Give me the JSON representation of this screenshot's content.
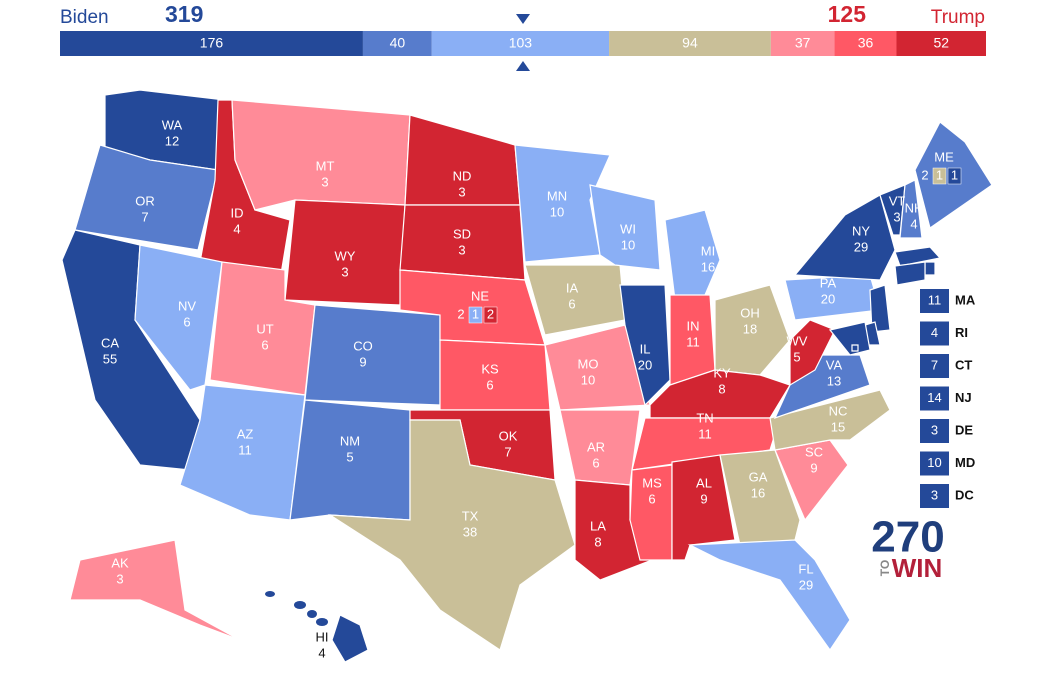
{
  "header": {
    "left_label": "Biden",
    "left_total": 319,
    "right_total": 125,
    "right_label": "Trump"
  },
  "bar": {
    "segments": [
      {
        "value": 176,
        "color": "#244999"
      },
      {
        "value": 40,
        "color": "#577ccc"
      },
      {
        "value": 103,
        "color": "#8aaff5"
      },
      {
        "value": 94,
        "color": "#c9bf98"
      },
      {
        "value": 37,
        "color": "#ff8b98"
      },
      {
        "value": 36,
        "color": "#ff5865"
      },
      {
        "value": 52,
        "color": "#d22532"
      }
    ]
  },
  "states": [
    {
      "abbr": "WA",
      "ev": 12,
      "color": "#244999"
    },
    {
      "abbr": "OR",
      "ev": 7,
      "color": "#577ccc"
    },
    {
      "abbr": "CA",
      "ev": 55,
      "color": "#244999"
    },
    {
      "abbr": "ID",
      "ev": 4,
      "color": "#d22532"
    },
    {
      "abbr": "NV",
      "ev": 6,
      "color": "#8aaff5"
    },
    {
      "abbr": "MT",
      "ev": 3,
      "color": "#ff8b98"
    },
    {
      "abbr": "WY",
      "ev": 3,
      "color": "#d22532"
    },
    {
      "abbr": "UT",
      "ev": 6,
      "color": "#ff8b98"
    },
    {
      "abbr": "AZ",
      "ev": 11,
      "color": "#8aaff5"
    },
    {
      "abbr": "CO",
      "ev": 9,
      "color": "#577ccc"
    },
    {
      "abbr": "NM",
      "ev": 5,
      "color": "#577ccc"
    },
    {
      "abbr": "ND",
      "ev": 3,
      "color": "#d22532"
    },
    {
      "abbr": "SD",
      "ev": 3,
      "color": "#d22532"
    },
    {
      "abbr": "NE",
      "ev": 2,
      "color": "#ff5865",
      "districts": [
        {
          "ev": 1,
          "color": "#8aaff5"
        },
        {
          "ev": 2,
          "color": "#d22532"
        }
      ]
    },
    {
      "abbr": "KS",
      "ev": 6,
      "color": "#ff5865"
    },
    {
      "abbr": "OK",
      "ev": 7,
      "color": "#d22532"
    },
    {
      "abbr": "TX",
      "ev": 38,
      "color": "#c9bf98"
    },
    {
      "abbr": "MN",
      "ev": 10,
      "color": "#8aaff5"
    },
    {
      "abbr": "IA",
      "ev": 6,
      "color": "#c9bf98"
    },
    {
      "abbr": "MO",
      "ev": 10,
      "color": "#ff8b98"
    },
    {
      "abbr": "AR",
      "ev": 6,
      "color": "#ff8b98"
    },
    {
      "abbr": "LA",
      "ev": 8,
      "color": "#d22532"
    },
    {
      "abbr": "WI",
      "ev": 10,
      "color": "#8aaff5"
    },
    {
      "abbr": "IL",
      "ev": 20,
      "color": "#244999"
    },
    {
      "abbr": "MI",
      "ev": 16,
      "color": "#8aaff5"
    },
    {
      "abbr": "IN",
      "ev": 11,
      "color": "#ff5865"
    },
    {
      "abbr": "OH",
      "ev": 18,
      "color": "#c9bf98"
    },
    {
      "abbr": "KY",
      "ev": 8,
      "color": "#d22532"
    },
    {
      "abbr": "TN",
      "ev": 11,
      "color": "#ff5865"
    },
    {
      "abbr": "MS",
      "ev": 6,
      "color": "#ff5865"
    },
    {
      "abbr": "AL",
      "ev": 9,
      "color": "#d22532"
    },
    {
      "abbr": "GA",
      "ev": 16,
      "color": "#c9bf98"
    },
    {
      "abbr": "FL",
      "ev": 29,
      "color": "#8aaff5"
    },
    {
      "abbr": "SC",
      "ev": 9,
      "color": "#ff8b98"
    },
    {
      "abbr": "NC",
      "ev": 15,
      "color": "#c9bf98"
    },
    {
      "abbr": "VA",
      "ev": 13,
      "color": "#577ccc"
    },
    {
      "abbr": "WV",
      "ev": 5,
      "color": "#d22532"
    },
    {
      "abbr": "PA",
      "ev": 20,
      "color": "#8aaff5"
    },
    {
      "abbr": "NY",
      "ev": 29,
      "color": "#244999"
    },
    {
      "abbr": "VT",
      "ev": 3,
      "color": "#244999"
    },
    {
      "abbr": "NH",
      "ev": 4,
      "color": "#577ccc"
    },
    {
      "abbr": "ME",
      "ev": 2,
      "color": "#577ccc",
      "districts": [
        {
          "ev": 1,
          "color": "#c9bf98"
        },
        {
          "ev": 1,
          "color": "#244999"
        }
      ]
    },
    {
      "abbr": "AK",
      "ev": 3,
      "color": "#ff8b98"
    },
    {
      "abbr": "HI",
      "ev": 4,
      "color": "#244999"
    }
  ],
  "small_states": [
    {
      "abbr": "MA",
      "ev": 11,
      "color": "#244999"
    },
    {
      "abbr": "RI",
      "ev": 4,
      "color": "#244999"
    },
    {
      "abbr": "CT",
      "ev": 7,
      "color": "#244999"
    },
    {
      "abbr": "NJ",
      "ev": 14,
      "color": "#244999"
    },
    {
      "abbr": "DE",
      "ev": 3,
      "color": "#244999"
    },
    {
      "abbr": "MD",
      "ev": 10,
      "color": "#244999"
    },
    {
      "abbr": "DC",
      "ev": 3,
      "color": "#244999"
    }
  ],
  "logo": {
    "number": "270",
    "to": "TO",
    "win": "WIN"
  }
}
